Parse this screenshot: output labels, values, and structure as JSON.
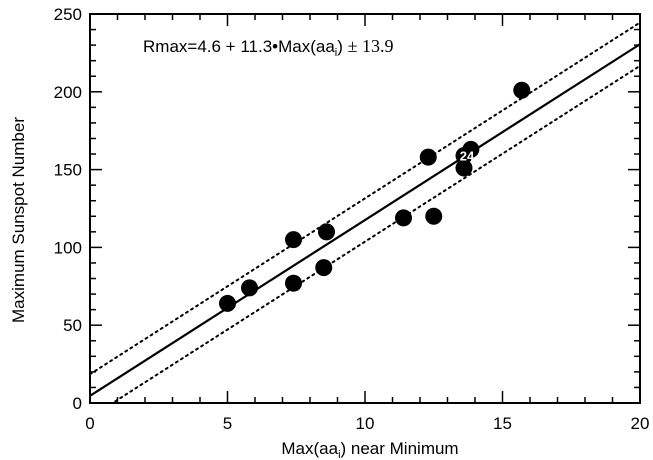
{
  "chart_data": {
    "type": "scatter",
    "title": "",
    "xlabel_main": "Max(aa",
    "xlabel_sub": "i",
    "xlabel_rest": ") near Minimum",
    "ylabel": "Maximum Sunspot Number",
    "xlim": [
      0,
      20
    ],
    "ylim": [
      0,
      250
    ],
    "x_ticks": [
      0,
      5,
      10,
      15,
      20
    ],
    "y_ticks": [
      0,
      50,
      100,
      150,
      200,
      250
    ],
    "grid": false,
    "annotation": {
      "part1": "Rmax=4.6 + 11.3",
      "bullet": "•",
      "part2": "Max(aa",
      "sub": "i",
      "part3": ") ",
      "plusminus": "± 13.9"
    },
    "fit": {
      "intercept": 4.6,
      "slope": 11.3,
      "band": 13.9
    },
    "points": [
      {
        "x": 5.0,
        "y": 64
      },
      {
        "x": 5.8,
        "y": 74
      },
      {
        "x": 7.4,
        "y": 105
      },
      {
        "x": 7.4,
        "y": 77
      },
      {
        "x": 8.5,
        "y": 87
      },
      {
        "x": 8.6,
        "y": 110
      },
      {
        "x": 11.4,
        "y": 119
      },
      {
        "x": 12.3,
        "y": 158
      },
      {
        "x": 12.5,
        "y": 120
      },
      {
        "x": 13.6,
        "y": 151
      },
      {
        "x": 13.85,
        "y": 163
      },
      {
        "x": 15.7,
        "y": 201
      }
    ],
    "highlight_point": {
      "x": 13.6,
      "y": 159,
      "label": "24"
    },
    "colors": {
      "marker": "#000000",
      "line": "#000000",
      "label": "#ffffff"
    }
  }
}
